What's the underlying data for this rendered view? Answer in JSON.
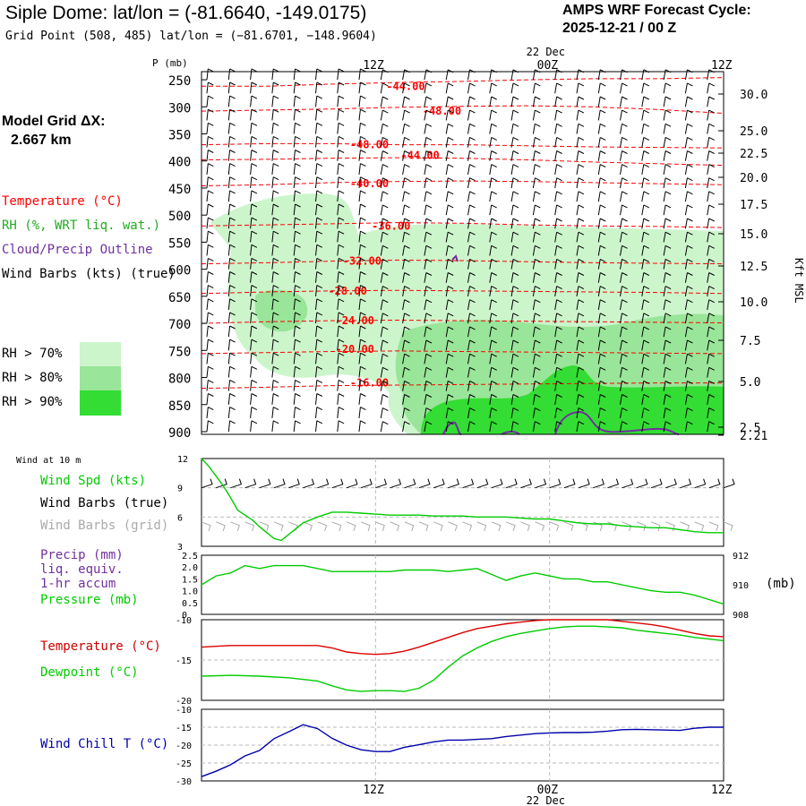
{
  "header": {
    "title": "Siple Dome:  lat/lon = (-81.6640, -149.0175)",
    "subtitle": "Grid Point (508, 485) lat/lon = (−81.6701, −148.9604)",
    "cycle_label": "AMPS WRF Forecast Cycle:",
    "cycle_value": "2025-12-21 / 00  Z"
  },
  "model": {
    "label": "Model Grid ΔX:",
    "value": "2.667 km"
  },
  "legend": {
    "temperature": "Temperature (°C)",
    "rh": "RH (%, WRT liq. wat.)",
    "cloud": "Cloud/Precip Outline",
    "wind": "Wind Barbs (kts) (true)",
    "rh70": "RH > 70%",
    "rh80": "RH > 80%",
    "rh90": "RH > 90%"
  },
  "colors": {
    "temperature": "#ff0000",
    "rh": "#22aa22",
    "cloud": "#7030a0",
    "rh70": "#ccf5cc",
    "rh80": "#99e599",
    "rh90": "#33dd33",
    "dewpoint": "#00cc00",
    "windchill": "#0000aa",
    "grid_barbs": "#aaaaaa"
  },
  "time_axis": {
    "top_ticks": [
      "12Z",
      "00Z",
      "12Z"
    ],
    "date_label": "22 Dec",
    "bottom_ticks": [
      "12Z",
      "00Z",
      "12Z"
    ]
  },
  "panels": {
    "wind10m": {
      "title": "Wind at 10 m",
      "label_speed": "Wind Spd (kts)",
      "label_true": "Wind Barbs (true)",
      "label_grid": "Wind Barbs (grid)"
    },
    "precip": {
      "label1": "Precip (mm)",
      "label2": "liq. equiv.",
      "label3": "1-hr accum",
      "label4": "Pressure (mb)",
      "units": "(mb)"
    },
    "temp": {
      "label_t": "Temperature (°C)",
      "label_td": "Dewpoint (°C)"
    },
    "chill": {
      "label": "Wind Chill T (°C)"
    }
  },
  "chart_data": [
    {
      "type": "heatmap",
      "ylabel": "P (mb)",
      "y2label": "Kft MSL",
      "pressure_ticks": [
        250,
        300,
        350,
        400,
        450,
        500,
        550,
        600,
        650,
        700,
        750,
        800,
        850,
        900
      ],
      "height_ticks": [
        "30.0",
        "25.0",
        "22.5",
        "20.0",
        "17.5",
        "15.0",
        "12.5",
        "10.0",
        "7.5",
        "5.0",
        "2.5",
        "2.21"
      ],
      "temperature_contours": [
        {
          "label": "-44.00",
          "t": 11.5,
          "p": 262
        },
        {
          "label": "-48.00",
          "t": 14.0,
          "p": 308
        },
        {
          "label": "-48.00",
          "t": 9.0,
          "p": 370
        },
        {
          "label": "-44.00",
          "t": 12.5,
          "p": 390
        },
        {
          "label": "-40.00",
          "t": 9.0,
          "p": 442
        },
        {
          "label": "-36.00",
          "t": 10.5,
          "p": 520
        },
        {
          "label": "-32.00",
          "t": 8.5,
          "p": 585
        },
        {
          "label": "-28.00",
          "t": 7.5,
          "p": 640
        },
        {
          "label": "-24.00",
          "t": 8.0,
          "p": 695
        },
        {
          "label": "-20.00",
          "t": 8.0,
          "p": 748
        },
        {
          "label": "-16.00",
          "t": 9.0,
          "p": 810
        }
      ]
    },
    {
      "type": "line",
      "title": "Wind at 10 m",
      "ylabel": "Wind Spd (kts)",
      "ylim": [
        3,
        12
      ],
      "yticks": [
        3,
        6,
        9,
        12
      ],
      "series": [
        {
          "name": "Wind Spd (kts)",
          "x": [
            0,
            0.5,
            1,
            1.5,
            2,
            2.5,
            3,
            3.5,
            4,
            4.5,
            5,
            5.5,
            6,
            7,
            8,
            9,
            10,
            11,
            12,
            13,
            14,
            15,
            16,
            17,
            18,
            19,
            20,
            21,
            22,
            23,
            24,
            25,
            26,
            27,
            28,
            29,
            30,
            31,
            32,
            33,
            34,
            35,
            36
          ],
          "y": [
            12,
            11.2,
            10.2,
            9.2,
            8.0,
            6.7,
            6.2,
            5.7,
            5.0,
            4.4,
            3.8,
            3.6,
            4.2,
            5.4,
            6.0,
            6.5,
            6.5,
            6.4,
            6.3,
            6.2,
            6.2,
            6.2,
            6.1,
            6.1,
            6.1,
            6.0,
            6.0,
            6.0,
            5.9,
            5.8,
            5.8,
            5.6,
            5.4,
            5.3,
            5.3,
            5.1,
            5.0,
            4.9,
            4.9,
            4.7,
            4.5,
            4.4,
            4.4
          ]
        }
      ]
    },
    {
      "type": "line",
      "ylabel": "Precip (mm)",
      "ylim": [
        0,
        2.5
      ],
      "yticks": [
        "0",
        "0.5",
        "1.0",
        "1.5",
        "2.0",
        "2.5"
      ],
      "y2label": "Pressure (mb)",
      "y2lim": [
        908,
        912
      ],
      "y2ticks": [
        908,
        910,
        912
      ],
      "series": [
        {
          "name": "Pressure (mb)",
          "x": [
            0,
            1,
            2,
            3,
            4,
            5,
            6,
            7,
            8,
            9,
            10,
            11,
            12,
            13,
            14,
            15,
            16,
            17,
            18,
            19,
            20,
            21,
            22,
            23,
            24,
            25,
            26,
            27,
            28,
            29,
            30,
            31,
            32,
            33,
            34,
            35,
            36
          ],
          "y": [
            910.0,
            910.6,
            910.8,
            911.3,
            911.1,
            911.3,
            911.3,
            911.3,
            911.1,
            910.9,
            910.9,
            910.9,
            910.9,
            910.9,
            911.0,
            911.0,
            911.0,
            910.9,
            911.0,
            911.1,
            910.7,
            910.3,
            910.6,
            910.8,
            910.6,
            910.4,
            910.4,
            910.2,
            910.2,
            910.0,
            909.8,
            909.6,
            909.5,
            909.5,
            909.3,
            909.0,
            908.7
          ]
        }
      ]
    },
    {
      "type": "line",
      "ylim": [
        -20,
        -10
      ],
      "yticks": [
        -20,
        -15,
        -10
      ],
      "series": [
        {
          "name": "Temperature (°C)",
          "x": [
            0,
            2,
            4,
            6,
            8,
            9,
            10,
            11,
            12,
            13,
            14,
            15,
            16,
            17,
            18,
            19,
            20,
            21,
            22,
            23,
            24,
            25,
            26,
            27,
            28,
            29,
            30,
            31,
            32,
            33,
            34,
            35,
            36
          ],
          "y": [
            -13.4,
            -13.2,
            -13.2,
            -13.2,
            -13.2,
            -13.5,
            -14.0,
            -14.2,
            -14.3,
            -14.2,
            -13.9,
            -13.4,
            -12.8,
            -12.2,
            -11.6,
            -11.1,
            -10.8,
            -10.5,
            -10.3,
            -10.1,
            -10.0,
            -10.0,
            -10.0,
            -10.0,
            -10.0,
            -10.2,
            -10.4,
            -10.6,
            -10.9,
            -11.3,
            -11.7,
            -12.0,
            -12.1
          ]
        },
        {
          "name": "Dewpoint (°C)",
          "x": [
            0,
            2,
            4,
            6,
            8,
            9,
            10,
            11,
            12,
            13,
            14,
            15,
            16,
            17,
            18,
            19,
            20,
            21,
            22,
            23,
            24,
            25,
            26,
            27,
            28,
            29,
            30,
            31,
            32,
            33,
            34,
            35,
            36
          ],
          "y": [
            -17.0,
            -16.9,
            -17.0,
            -17.2,
            -17.6,
            -18.2,
            -18.7,
            -18.9,
            -18.8,
            -18.8,
            -18.9,
            -18.5,
            -17.5,
            -15.9,
            -14.5,
            -13.5,
            -12.7,
            -12.1,
            -11.7,
            -11.4,
            -11.1,
            -10.9,
            -10.8,
            -10.8,
            -10.9,
            -11.0,
            -11.3,
            -11.5,
            -11.7,
            -11.9,
            -12.2,
            -12.4,
            -12.6
          ]
        }
      ]
    },
    {
      "type": "line",
      "ylim": [
        -30,
        -10
      ],
      "yticks": [
        -30,
        -25,
        -20,
        -15,
        -10
      ],
      "series": [
        {
          "name": "Wind Chill T (°C)",
          "x": [
            0,
            1,
            2,
            3,
            4,
            5,
            6,
            7,
            8,
            9,
            10,
            11,
            12,
            13,
            14,
            15,
            16,
            17,
            18,
            19,
            20,
            21,
            22,
            23,
            24,
            25,
            26,
            27,
            28,
            29,
            30,
            31,
            32,
            33,
            34,
            35,
            36
          ],
          "y": [
            -28.8,
            -27.3,
            -25.5,
            -23.0,
            -21.5,
            -18.2,
            -16.3,
            -14.3,
            -15.4,
            -18.1,
            -20.0,
            -21.3,
            -21.8,
            -21.8,
            -20.6,
            -19.9,
            -19.1,
            -18.6,
            -18.6,
            -18.4,
            -18.2,
            -17.6,
            -17.2,
            -16.8,
            -16.6,
            -16.5,
            -16.5,
            -16.4,
            -16.1,
            -15.7,
            -15.6,
            -15.7,
            -15.8,
            -15.9,
            -15.3,
            -15.0,
            -15.0
          ]
        }
      ]
    }
  ]
}
